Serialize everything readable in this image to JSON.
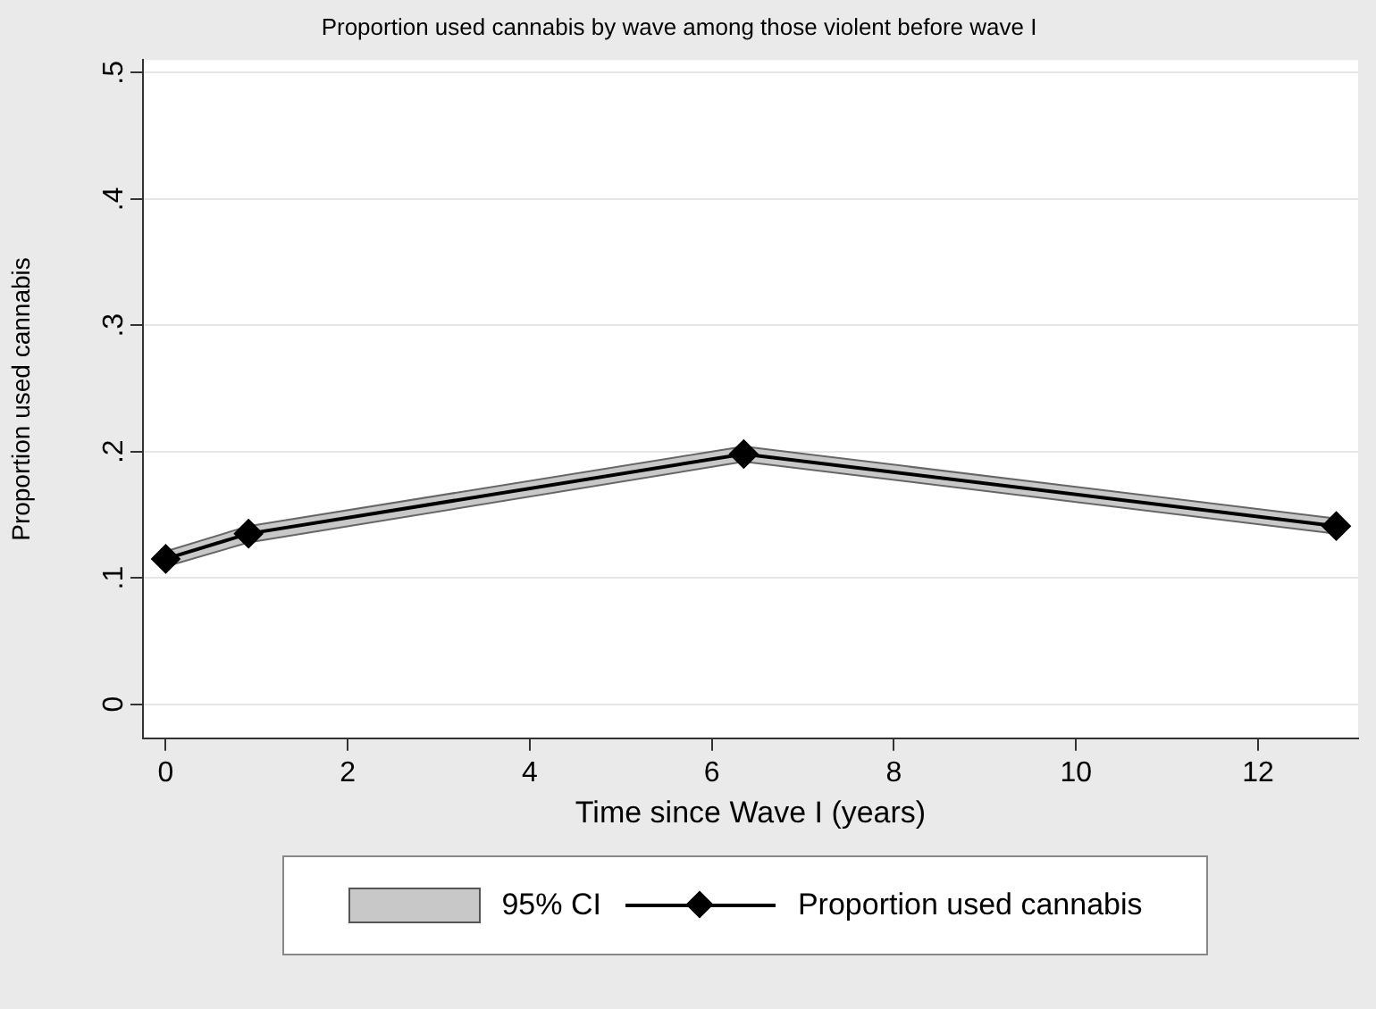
{
  "chart_data": {
    "type": "line",
    "title": "Proportion used cannabis by wave among those violent before wave I",
    "xlabel": "Time since Wave I (years)",
    "ylabel": "Proportion used cannabis",
    "x": [
      0,
      0.91,
      6.35,
      12.86
    ],
    "series": [
      {
        "name": "Proportion used cannabis",
        "color": "#000000",
        "values": [
          0.115,
          0.135,
          0.198,
          0.141
        ],
        "lower": [
          0.109,
          0.128,
          0.192,
          0.135
        ],
        "upper": [
          0.121,
          0.141,
          0.204,
          0.147
        ]
      }
    ],
    "annotations": [
      "95% CI"
    ],
    "xlim": [
      -0.25,
      13.1
    ],
    "xticks": [
      0,
      2,
      4,
      6,
      8,
      10,
      12
    ],
    "ylim": [
      -0.027,
      0.51
    ],
    "yticks": [
      0,
      {
        "value": 0.1,
        "label": ".1"
      },
      {
        "value": 0.2,
        "label": ".2"
      },
      {
        "value": 0.3,
        "label": ".3"
      },
      {
        "value": 0.4,
        "label": ".4"
      },
      {
        "value": 0.5,
        "label": ".5"
      }
    ],
    "grid": "y",
    "legend": "bottom",
    "marker": "diamond",
    "line_style": "solid"
  }
}
